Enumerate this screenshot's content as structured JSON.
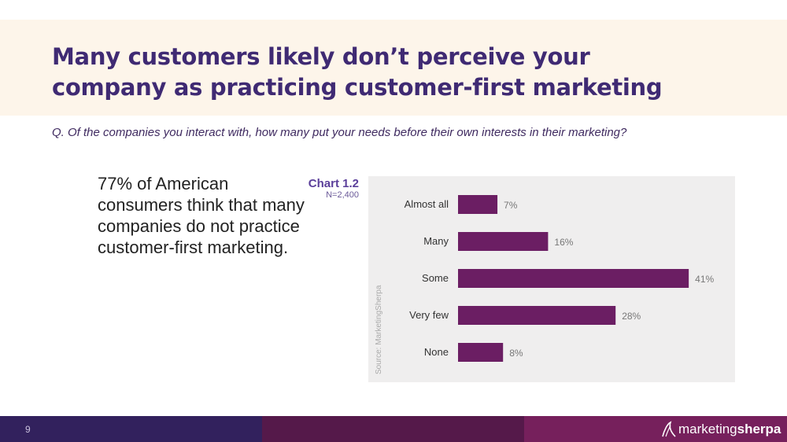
{
  "header": {
    "title_line1": "Many customers likely don’t perceive your",
    "title_line2": "company as practicing customer-first marketing"
  },
  "question": "Q. Of the companies you interact with, how many put your needs before their own interests in their marketing?",
  "callout": "77% of American consumers think that many companies do not practice customer-first marketing.",
  "chart_label": {
    "number": "Chart 1.2",
    "n": "N=2,400"
  },
  "source": "Source: MarketingSherpa",
  "colors": {
    "bar": "#6b1e63",
    "title": "#3f2a73"
  },
  "chart_data": {
    "type": "bar",
    "orientation": "horizontal",
    "categories": [
      "Almost all",
      "Many",
      "Some",
      "Very few",
      "None"
    ],
    "values": [
      7,
      16,
      41,
      28,
      8
    ],
    "value_labels": [
      "7%",
      "16%",
      "41%",
      "28%",
      "8%"
    ],
    "unit": "%",
    "xlim": [
      0,
      45
    ],
    "title": "Chart 1.2",
    "xlabel": "",
    "ylabel": ""
  },
  "footer": {
    "page_number": "9",
    "brand_part1": "marketing",
    "brand_part2": "sherpa"
  }
}
